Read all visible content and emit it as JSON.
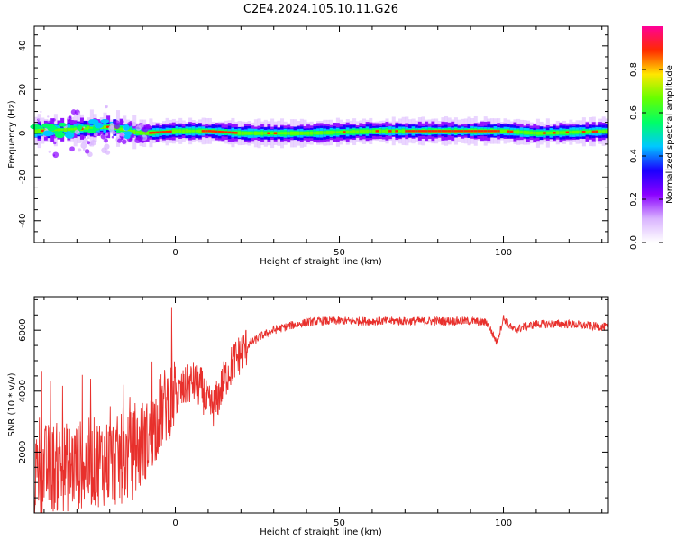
{
  "title": "C2E4.2024.105.10.11.G26",
  "colors": {
    "snr_line": "#e8302c",
    "colormap": [
      "#ffffff",
      "#d9b3ff",
      "#8a00ff",
      "#1a00ff",
      "#00c8ff",
      "#00ff66",
      "#66ff00",
      "#ffe600",
      "#ff2a00",
      "#ff0099"
    ]
  },
  "chart_data": [
    {
      "type": "heatmap",
      "name": "spectrogram",
      "xlabel": "Height of straight line (km)",
      "ylabel": "Frequency (Hz)",
      "xlim": [
        -43,
        132
      ],
      "ylim": [
        -50,
        49
      ],
      "x_ticks": [
        0,
        50,
        100
      ],
      "y_ticks": [
        -40,
        -20,
        0,
        20,
        40
      ],
      "colorbar": {
        "label": "Normalized spectral amplitude",
        "range": [
          0,
          1
        ],
        "ticks": [
          "0.0",
          "0.2",
          "0.4",
          "0.6",
          "0.8"
        ],
        "tick_values": [
          0.0,
          0.2,
          0.4,
          0.6,
          0.8
        ]
      },
      "band": {
        "center_hz": [
          [
            -43,
            1
          ],
          [
            -30,
            2
          ],
          [
            -20,
            3
          ],
          [
            -15,
            1
          ],
          [
            -10,
            0
          ],
          [
            0,
            1
          ],
          [
            10,
            1
          ],
          [
            20,
            0
          ],
          [
            40,
            0
          ],
          [
            60,
            1
          ],
          [
            80,
            1
          ],
          [
            100,
            1
          ],
          [
            110,
            0
          ],
          [
            132,
            1
          ]
        ],
        "core_x_ranges": [
          [
            -8,
            -2
          ],
          [
            8,
            18
          ],
          [
            72,
            98
          ]
        ]
      }
    },
    {
      "type": "line",
      "name": "snr",
      "xlabel": "Height of straight line (km)",
      "ylabel": "SNR (10 * v/v)",
      "xlim": [
        -43,
        132
      ],
      "ylim": [
        0,
        7100
      ],
      "x_ticks": [
        0,
        50,
        100
      ],
      "y_ticks": [
        2000,
        4000,
        6000
      ],
      "series": [
        {
          "x": [
            -43,
            -38,
            -33,
            -28,
            -23,
            -18,
            -13,
            -8,
            -5,
            -2,
            2,
            5,
            8,
            10,
            12,
            15,
            18,
            22,
            26,
            30,
            35,
            40,
            45,
            50,
            55,
            60,
            65,
            70,
            75,
            80,
            85,
            90,
            95,
            98,
            100,
            103,
            106,
            110,
            115,
            120,
            125,
            132
          ],
          "values": [
            1300,
            1500,
            1500,
            1600,
            1700,
            1700,
            1900,
            2500,
            3200,
            3700,
            4000,
            4300,
            4100,
            3500,
            3500,
            4400,
            5000,
            5500,
            5800,
            6000,
            6150,
            6250,
            6300,
            6300,
            6300,
            6300,
            6300,
            6300,
            6300,
            6300,
            6300,
            6300,
            6250,
            5600,
            6400,
            6000,
            6100,
            6200,
            6200,
            6200,
            6150,
            6100
          ]
        }
      ]
    }
  ]
}
